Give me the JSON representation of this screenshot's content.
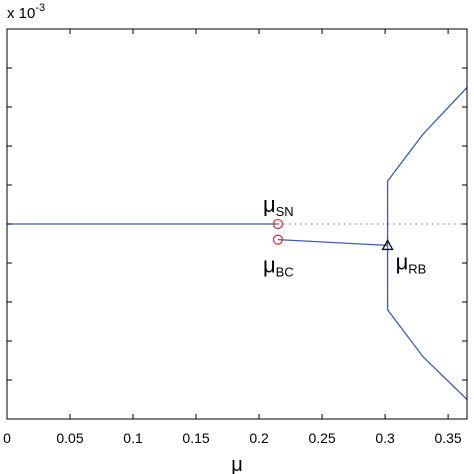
{
  "chart_data": {
    "type": "line",
    "title": "",
    "xlabel": "μ",
    "ylabel": "",
    "scale_note": "x 10",
    "scale_exponent": "-3",
    "xlim": [
      0,
      0.365
    ],
    "ylim": [
      -5,
      5
    ],
    "xticks": [
      0,
      0.05,
      0.1,
      0.15,
      0.2,
      0.25,
      0.3,
      0.35
    ],
    "xtick_labels": [
      "0",
      "0.05",
      "0.1",
      "0.15",
      "0.2",
      "0.25",
      "0.3",
      "0.35"
    ],
    "yticks": [
      -4,
      -3,
      -2,
      -1,
      0,
      1,
      2,
      3,
      4
    ],
    "grid": false,
    "series": [
      {
        "role": "upper-stable-branch",
        "style": "solid",
        "color": "#3a5fb0",
        "x": [
          0,
          0.215
        ],
        "y": [
          0,
          0
        ]
      },
      {
        "role": "unstable-branch",
        "style": "dotted",
        "color": "#888888",
        "x": [
          0.215,
          0.365
        ],
        "y": [
          0,
          0
        ]
      },
      {
        "role": "lower-branch",
        "style": "solid",
        "color": "#3a5fb0",
        "x": [
          0.215,
          0.302
        ],
        "y": [
          -0.4,
          -0.55
        ]
      },
      {
        "role": "upper-bifurcated-branch",
        "style": "solid",
        "color": "#3a5fb0",
        "x": [
          0.302,
          0.302,
          0.33,
          0.365
        ],
        "y": [
          -0.55,
          1.1,
          2.3,
          3.5
        ]
      },
      {
        "role": "lower-bifurcated-branch",
        "style": "solid",
        "color": "#3a5fb0",
        "x": [
          0.302,
          0.302,
          0.33,
          0.365
        ],
        "y": [
          -0.55,
          -2.2,
          -3.4,
          -4.5
        ]
      }
    ],
    "markers": [
      {
        "type": "circle",
        "color": "#e0303a",
        "x": 0.215,
        "y": 0,
        "label": "μ",
        "sub": "SN",
        "label_pos": "above"
      },
      {
        "type": "circle",
        "color": "#e0303a",
        "x": 0.215,
        "y": -0.4,
        "label": "μ",
        "sub": "BC",
        "label_pos": "below"
      },
      {
        "type": "triangle",
        "color": "#000000",
        "x": 0.302,
        "y": -0.55,
        "label": "μ",
        "sub": "RB",
        "label_pos": "right"
      }
    ]
  }
}
